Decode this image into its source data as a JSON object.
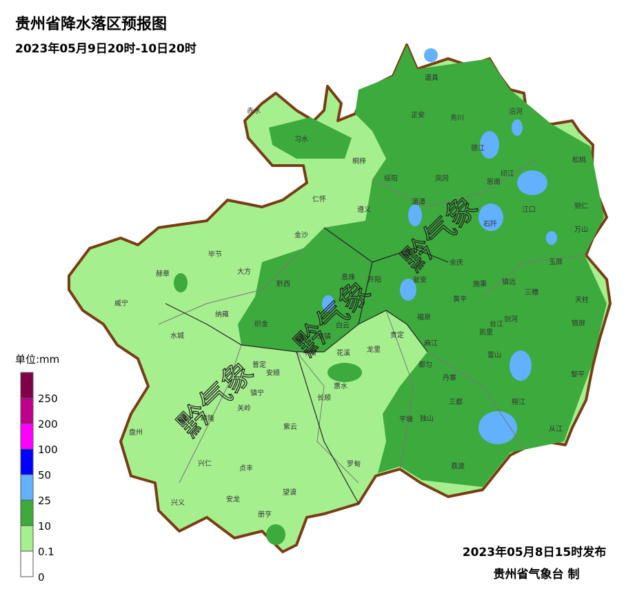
{
  "header": {
    "title": "贵州省降水落区预报图",
    "subtitle": "2023年05月9日20时-10日20时"
  },
  "legend": {
    "unit": "单位:mm",
    "labels": [
      "250",
      "200",
      "100",
      "50",
      "25",
      "10",
      "0.1",
      "0"
    ],
    "colors": [
      "#80004a",
      "#c0008c",
      "#ff00ff",
      "#0000ff",
      "#61b1ff",
      "#3daa3d",
      "#a6ef8f",
      "#ffffff"
    ]
  },
  "watermark": "黔气象",
  "counties": [
    "道真",
    "赤水",
    "正安",
    "务川",
    "沿河",
    "习水",
    "德江",
    "松桃",
    "桐梓",
    "绥阳",
    "凤冈",
    "印江",
    "思南",
    "湄潭",
    "仁怀",
    "遵义",
    "江口",
    "铜仁",
    "万山",
    "石阡",
    "金沙",
    "毕节",
    "余庆",
    "玉屏",
    "大方",
    "赫章",
    "息烽",
    "开阳",
    "瓮安",
    "施秉",
    "镇远",
    "黔西",
    "三穗",
    "天柱",
    "黄平",
    "威宁",
    "纳雍",
    "织金",
    "福泉",
    "剑河",
    "台江",
    "锦屏",
    "白云",
    "清镇",
    "贵定",
    "凯里",
    "麻江",
    "水城",
    "龙里",
    "花溪",
    "平坝",
    "雷山",
    "都匀",
    "普定",
    "安顺",
    "惠水",
    "丹寨",
    "黎平",
    "镇宁",
    "长顺",
    "关岭",
    "三都",
    "平塘",
    "独山",
    "榕江",
    "晴隆",
    "紫云",
    "从江",
    "盘州",
    "罗甸",
    "兴仁",
    "贞丰",
    "荔波",
    "望谟",
    "兴义",
    "安龙",
    "册亨"
  ],
  "footer": {
    "issued": "2023年05月8日15时发布",
    "agency": "贵州省气象台 制"
  }
}
